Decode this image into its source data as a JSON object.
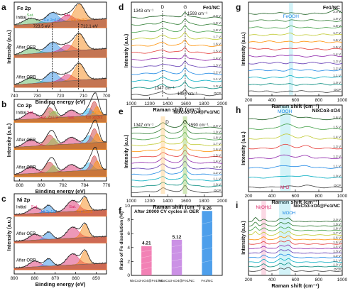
{
  "chart_data": [
    {
      "id": "a",
      "type": "line",
      "panel_label": "a",
      "title": "Fe 2p",
      "xlabel": "Binding energy (eV)",
      "ylabel": "Intensity (a.u.)",
      "xlim": [
        740,
        700
      ],
      "xticks": [
        740,
        730,
        720,
        710,
        700
      ],
      "traces": [
        "Initial",
        "After OER",
        "After ORR"
      ],
      "peaks": [
        {
          "label": "Sat.",
          "color": "#4caf50"
        },
        {
          "label": "Fe 2p1/2",
          "color": "#1e88e5"
        },
        {
          "label": "Sat.",
          "color": "#d81b60"
        },
        {
          "label": "Fe 2p3/2",
          "color": "#f57c00"
        }
      ],
      "annotations": [
        "723.5 eV",
        "712.1 eV"
      ]
    },
    {
      "id": "b",
      "type": "line",
      "panel_label": "b",
      "title": "Co 2p",
      "xlabel": "Binding energy (eV)",
      "ylabel": "Intensity (a.u.)",
      "xlim": [
        810,
        776
      ],
      "xticks": [
        808,
        800,
        792,
        784,
        776
      ],
      "traces": [
        "Initial",
        "After OER",
        "After ORR"
      ],
      "peaks": [
        {
          "label": "Sat.",
          "color": "#d81b60"
        },
        {
          "label": "Co 2p1/2",
          "color": "#c62828"
        },
        {
          "label": "Co3+",
          "color": "#8bc34a"
        },
        {
          "label": "Sat.",
          "color": "#d81b60"
        },
        {
          "label": "Co2+",
          "color": "#29b6f6"
        },
        {
          "label": "Co 2p3/2",
          "color": "#c62828"
        },
        {
          "label": "Co3+",
          "color": "#ff9800"
        }
      ]
    },
    {
      "id": "c",
      "type": "line",
      "panel_label": "c",
      "title": "Ni 2p",
      "xlabel": "Binding energy (eV)",
      "ylabel": "Intensity (a.u.)",
      "xlim": [
        890,
        845
      ],
      "xticks": [
        890,
        880,
        870,
        860,
        850
      ],
      "traces": [
        "Initial",
        "After OER",
        "After ORR"
      ],
      "peaks": [
        {
          "label": "Sat.",
          "color": "#d81b60"
        },
        {
          "label": "Ni 2p1/2",
          "color": "#1e88e5"
        },
        {
          "label": "Sat.",
          "color": "#d81b60"
        },
        {
          "label": "Ni 2p3/2",
          "color": "#f57c00"
        }
      ]
    },
    {
      "id": "d",
      "type": "line",
      "panel_label": "d",
      "title": "Fe1/NC",
      "xlabel": "Raman shift (cm⁻¹)",
      "ylabel": "Intensity (a.u.)",
      "xlim": [
        1000,
        2000
      ],
      "xticks": [
        1000,
        1200,
        1400,
        1600,
        1800,
        2000
      ],
      "band_labels": [
        "D",
        "G"
      ],
      "annotations": [
        "1343 cm⁻¹",
        "1593 cm⁻¹",
        "1347 cm⁻¹",
        "1584 cm⁻¹"
      ],
      "potentials": [
        "2.0 V",
        "1.9 V",
        "1.8 V",
        "1.7 V",
        "1.6 V",
        "1.5 V",
        "1.4 V",
        "1.3 V",
        "1.2 V",
        "1.1 V",
        "1.0 V",
        "OCP"
      ]
    },
    {
      "id": "e",
      "type": "line",
      "panel_label": "e",
      "title": "NixCo3-xO4@Fe1/NC",
      "xlabel": "Raman shift (cm⁻¹)",
      "ylabel": "Intensity (a.u.)",
      "xlim": [
        1000,
        2000
      ],
      "xticks": [
        1000,
        1200,
        1400,
        1600,
        1800,
        2000
      ],
      "band_labels": [
        "D",
        "G"
      ],
      "annotations": [
        "1347 cm⁻¹",
        "1590 cm⁻¹"
      ],
      "potentials": [
        "2.0 V",
        "1.9 V",
        "1.8 V",
        "1.7 V",
        "1.6 V",
        "1.5 V",
        "1.4 V",
        "1.3 V",
        "1.2 V",
        "1.1 V",
        "1.0 V",
        "OCP"
      ]
    },
    {
      "id": "f",
      "type": "bar",
      "panel_label": "f",
      "title": "After 20000 CV cycles in OER",
      "ylabel": "Ratio of Fe dissolution (%)",
      "categories": [
        "NixCo3-xO4@Fe1/NC",
        "MnxCo3-xO4@Fe1/NC",
        "Fe1/NC"
      ],
      "values": [
        4.21,
        5.12,
        9.26
      ],
      "value_labels": [
        "4.21",
        "5.12",
        "9.26"
      ],
      "ylim": [
        0,
        10
      ],
      "yticks": [
        0,
        2,
        4,
        6,
        8,
        10
      ],
      "colors": [
        "#f06ba8",
        "#c27ee0",
        "#2f8ee8"
      ]
    },
    {
      "id": "g",
      "type": "line",
      "panel_label": "g",
      "title": "Fe1/NC",
      "xlabel": "Raman shift (cm⁻¹)",
      "ylabel": "Intensity (a.u.)",
      "xlim": [
        200,
        1000
      ],
      "xticks": [
        200,
        400,
        600,
        800,
        1000
      ],
      "band_labels": [
        "FeOOH"
      ],
      "potentials": [
        "2.0 V",
        "1.9 V",
        "1.8 V",
        "1.7 V",
        "1.6 V",
        "1.5 V",
        "1.4 V",
        "1.3 V",
        "1.2 V",
        "1.1 V",
        "1.0 V",
        "OCP"
      ]
    },
    {
      "id": "h",
      "type": "line",
      "panel_label": "h",
      "title": "NixCo3-xO4",
      "xlabel": "Raman shift (cm⁻¹)",
      "ylabel": "Intensity (a.u.)",
      "xlim": [
        200,
        1000
      ],
      "xticks": [
        200,
        400,
        600,
        800,
        1000
      ],
      "band_labels": [
        "MOOH",
        "M-O"
      ],
      "potentials": [
        "1.6 V",
        "1.5 V",
        "1.4 V",
        "1.3 V",
        "1.2 V",
        "1.1 V",
        "1.0 V",
        "OCP"
      ]
    },
    {
      "id": "i",
      "type": "line",
      "panel_label": "i",
      "title": "NixCo3-xO4@Fe1/NC",
      "xlabel": "Raman shift (cm⁻¹)",
      "ylabel": "Intensity (a.u.)",
      "xlim": [
        200,
        1000
      ],
      "xticks": [
        200,
        400,
        600,
        800,
        1000
      ],
      "band_labels": [
        "Ni(OH)2",
        "MOOH"
      ],
      "potentials": [
        "2.0 V",
        "1.9 V",
        "1.8 V",
        "1.7 V",
        "1.6 V",
        "1.5 V",
        "1.4 V",
        "1.3 V",
        "1.2 V",
        "1.1 V",
        "1.0 V",
        "OCP"
      ]
    }
  ],
  "palette": [
    "#1b5e20",
    "#2e7d32",
    "#43a047",
    "#c0ca33",
    "#ff8f00",
    "#e53935",
    "#8e24aa",
    "#5e35b1",
    "#1e88e5",
    "#00acc1",
    "#00897b",
    "#424242"
  ]
}
